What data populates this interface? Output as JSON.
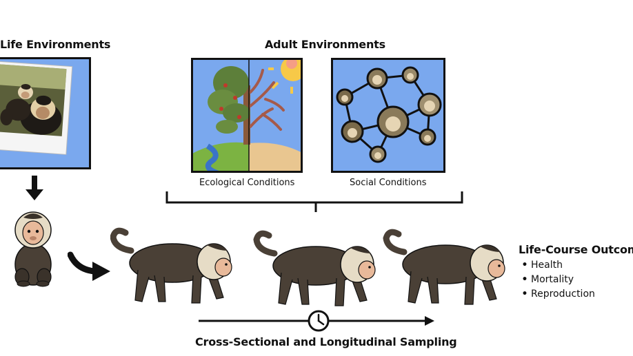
{
  "early_life": {
    "title": "Life Environments"
  },
  "adult": {
    "title": "Adult Environments",
    "ecological_caption": "Ecological Conditions",
    "social_caption": "Social Conditions"
  },
  "outcomes": {
    "title": "Life-Course Outcomes",
    "items": [
      "Health",
      "Mortality",
      "Reproduction"
    ]
  },
  "sampling": {
    "label": "Cross-Sectional and Longitudinal Sampling"
  },
  "colors": {
    "panel_blue": "#7aa8ee",
    "monkey_body": "#4a4036",
    "monkey_face": "#e8b99a",
    "monkey_mantle": "#e6dcc6",
    "sun": "#f7c948",
    "land": "#7cb342",
    "water": "#3a73c9",
    "dry_ground": "#e9c690"
  },
  "icons": [
    "down-arrow-icon",
    "curved-arrow-icon",
    "clock-icon",
    "tree-icon",
    "sun-icon"
  ]
}
